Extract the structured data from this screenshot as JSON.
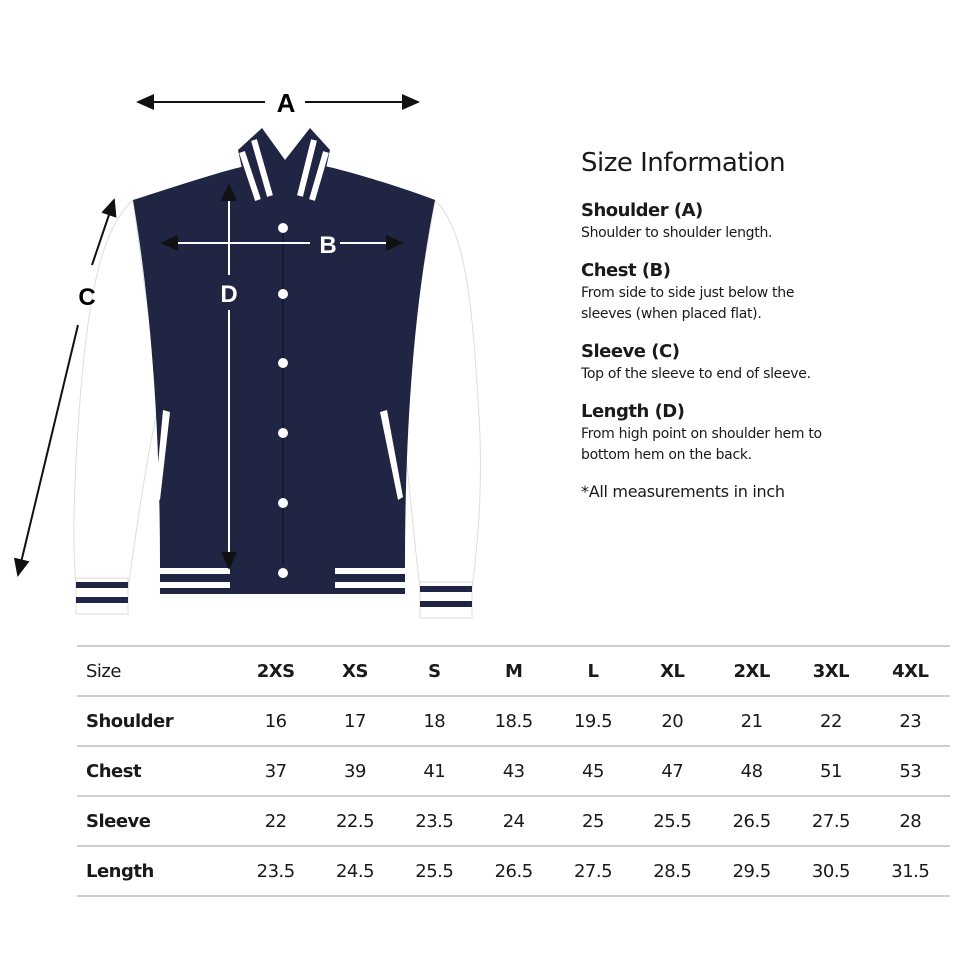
{
  "diagram": {
    "labels": {
      "a": "A",
      "b": "B",
      "c": "C",
      "d": "D"
    },
    "colors": {
      "body": "#1f2542",
      "sleeves": "#ffffff"
    }
  },
  "info": {
    "title": "Size Information",
    "items": [
      {
        "heading": "Shoulder (A)",
        "desc": "Shoulder to shoulder length."
      },
      {
        "heading": "Chest (B)",
        "desc": "From side to side just below the sleeves (when placed flat)."
      },
      {
        "heading": "Sleeve (C)",
        "desc": "Top of the sleeve to end of sleeve."
      },
      {
        "heading": "Length (D)",
        "desc": "From high point on shoulder hem to bottom hem on the back."
      }
    ],
    "note": "*All measurements in inch"
  },
  "table": {
    "header": "Size",
    "sizes": [
      "2XS",
      "XS",
      "S",
      "M",
      "L",
      "XL",
      "2XL",
      "3XL",
      "4XL"
    ],
    "rows": [
      {
        "label": "Shoulder",
        "values": [
          "16",
          "17",
          "18",
          "18.5",
          "19.5",
          "20",
          "21",
          "22",
          "23"
        ]
      },
      {
        "label": "Chest",
        "values": [
          "37",
          "39",
          "41",
          "43",
          "45",
          "47",
          "48",
          "51",
          "53"
        ]
      },
      {
        "label": "Sleeve",
        "values": [
          "22",
          "22.5",
          "23.5",
          "24",
          "25",
          "25.5",
          "26.5",
          "27.5",
          "28"
        ]
      },
      {
        "label": "Length",
        "values": [
          "23.5",
          "24.5",
          "25.5",
          "26.5",
          "27.5",
          "28.5",
          "29.5",
          "30.5",
          "31.5"
        ]
      }
    ]
  }
}
